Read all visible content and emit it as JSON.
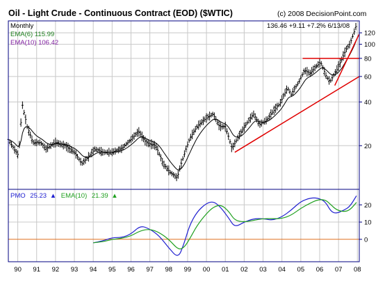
{
  "header": {
    "title": "Oil - Light Crude - Continuous Contract (EOD) ($WTIC)",
    "copyright": "(c) 2008 DecisionPoint.com",
    "period": "Monthly",
    "quote": "136.46  +9.11  +7.2%  6/13/08",
    "ema6_label": "EMA(6) 115.99",
    "ema10_label": "EMA(10) 106.42"
  },
  "colors": {
    "background": "#ffffff",
    "panel_border": "#000080",
    "grid": "#c8c8c8",
    "price_bars": "#000000",
    "ema_price": "#000000",
    "trendline": "#e00000",
    "pmo": "#2020d0",
    "pmo_signal": "#20a020",
    "zero_line": "#e07020",
    "ema6_text": "#208020",
    "ema10_text": "#8020a0"
  },
  "pmo_panel": {
    "pmo_label": "PMO",
    "pmo_value": "25.23",
    "pmo_arrow": "▲",
    "ema_label": "EMA(10)",
    "ema_value": "21.39",
    "ema_arrow": "▲"
  },
  "chart_data": [
    {
      "type": "line",
      "subtype": "ohlc-monthly",
      "title": "Oil - Light Crude - Continuous Contract (EOD) ($WTIC)",
      "xlabel": "",
      "ylabel": "",
      "x_tick_labels": [
        "90",
        "91",
        "92",
        "93",
        "94",
        "95",
        "96",
        "97",
        "98",
        "99",
        "00",
        "01",
        "02",
        "03",
        "04",
        "05",
        "06",
        "07",
        "08"
      ],
      "x_range": [
        1990.0,
        2008.6
      ],
      "y_scale": "log",
      "y_ticks": [
        20,
        40,
        60,
        80,
        100,
        120
      ],
      "ylim": [
        10,
        145
      ],
      "grid": true,
      "price_points": [
        [
          1990.0,
          22
        ],
        [
          1990.3,
          19
        ],
        [
          1990.55,
          17
        ],
        [
          1990.65,
          27
        ],
        [
          1990.75,
          38
        ],
        [
          1990.85,
          33
        ],
        [
          1991.0,
          27
        ],
        [
          1991.3,
          21
        ],
        [
          1991.7,
          21
        ],
        [
          1992.0,
          19
        ],
        [
          1992.5,
          21
        ],
        [
          1993.0,
          20
        ],
        [
          1993.5,
          18
        ],
        [
          1993.9,
          15
        ],
        [
          1994.3,
          17
        ],
        [
          1994.6,
          19
        ],
        [
          1995.0,
          18
        ],
        [
          1995.5,
          18
        ],
        [
          1996.0,
          19
        ],
        [
          1996.5,
          22
        ],
        [
          1996.9,
          25
        ],
        [
          1997.3,
          21
        ],
        [
          1997.8,
          20
        ],
        [
          1998.2,
          15
        ],
        [
          1998.6,
          13
        ],
        [
          1998.95,
          12
        ],
        [
          1999.3,
          17
        ],
        [
          1999.6,
          22
        ],
        [
          2000.0,
          27
        ],
        [
          2000.5,
          31
        ],
        [
          2000.85,
          33
        ],
        [
          2001.2,
          27
        ],
        [
          2001.5,
          27
        ],
        [
          2001.85,
          19
        ],
        [
          2002.2,
          23
        ],
        [
          2002.6,
          28
        ],
        [
          2003.0,
          33
        ],
        [
          2003.3,
          28
        ],
        [
          2003.7,
          30
        ],
        [
          2004.0,
          34
        ],
        [
          2004.4,
          39
        ],
        [
          2004.8,
          50
        ],
        [
          2005.0,
          45
        ],
        [
          2005.4,
          55
        ],
        [
          2005.7,
          66
        ],
        [
          2006.0,
          63
        ],
        [
          2006.3,
          70
        ],
        [
          2006.55,
          75
        ],
        [
          2006.85,
          60
        ],
        [
          2007.05,
          55
        ],
        [
          2007.4,
          66
        ],
        [
          2007.7,
          80
        ],
        [
          2007.9,
          92
        ],
        [
          2008.1,
          100
        ],
        [
          2008.3,
          118
        ],
        [
          2008.45,
          136.46
        ]
      ],
      "series": [
        {
          "name": "EMA(6)",
          "last_value": 115.99
        },
        {
          "name": "EMA(10)",
          "last_value": 106.42
        }
      ],
      "annotations": [
        {
          "kind": "horizontal-line",
          "y": 80,
          "x_start": 2005.6,
          "x_end": 2008.6
        },
        {
          "kind": "trendline",
          "from": [
            2002.0,
            18
          ],
          "to": [
            2008.6,
            60
          ]
        },
        {
          "kind": "trendline",
          "from": [
            2007.3,
            52
          ],
          "to": [
            2008.6,
            118
          ]
        }
      ],
      "last": {
        "value": 136.46,
        "change": "+9.11",
        "change_pct": "+7.2%",
        "date": "6/13/08"
      }
    },
    {
      "type": "line",
      "title": "",
      "xlabel": "",
      "ylabel": "",
      "y_ticks": [
        0,
        10,
        20
      ],
      "ylim": [
        -13,
        29
      ],
      "grid": true,
      "x": [
        1994.5,
        1995.0,
        1995.5,
        1996.0,
        1996.5,
        1997.0,
        1997.5,
        1998.0,
        1998.5,
        1999.0,
        1999.3,
        1999.6,
        2000.0,
        2000.5,
        2000.9,
        2001.3,
        2001.7,
        2002.0,
        2002.5,
        2003.0,
        2003.5,
        2004.0,
        2004.5,
        2005.0,
        2005.5,
        2006.0,
        2006.4,
        2006.8,
        2007.1,
        2007.4,
        2007.8,
        2008.1,
        2008.45
      ],
      "series": [
        {
          "name": "PMO",
          "values": [
            -2,
            -1,
            1,
            1,
            3,
            8,
            6,
            2,
            -5,
            -11,
            -3,
            8,
            16,
            21,
            22,
            18,
            12,
            7,
            10,
            12,
            12,
            11,
            13,
            17,
            22,
            24,
            24,
            22,
            16,
            15,
            17,
            19,
            25.23
          ]
        },
        {
          "name": "EMA(10)",
          "values": [
            -2,
            -1.5,
            0,
            0.5,
            2,
            5,
            6,
            4,
            0,
            -6,
            -5,
            0,
            8,
            15,
            19,
            20,
            16,
            11,
            10,
            11,
            12,
            12,
            12,
            14,
            18,
            21,
            23,
            23,
            20,
            17,
            16,
            17,
            21.39
          ]
        }
      ]
    }
  ]
}
